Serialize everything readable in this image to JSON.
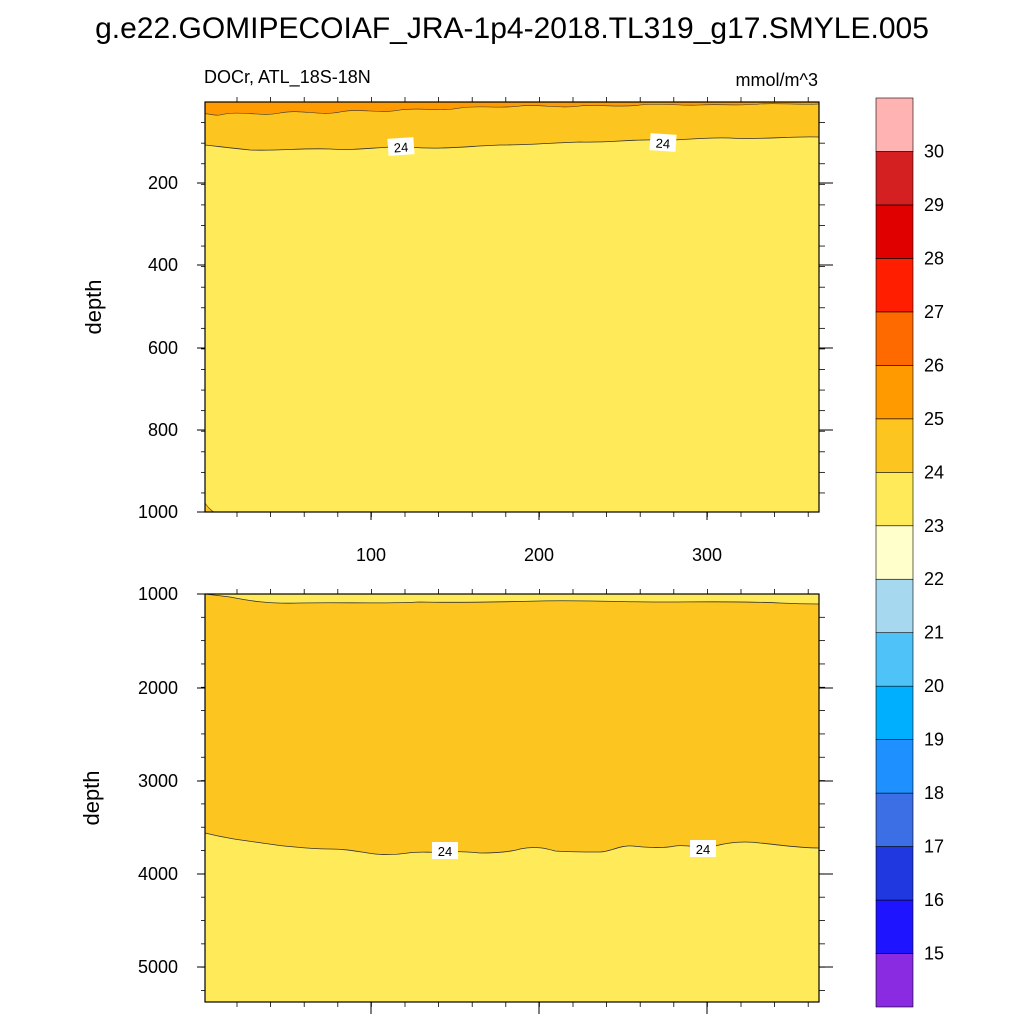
{
  "title": "g.e22.GOMIPECOIAF_JRA-1p4-2018.TL319_g17.SMYLE.005",
  "left_subtitle": "DOCr, ATL_18S-18N",
  "right_subtitle": "mmol/m^3",
  "colorbar": {
    "levels": [
      "15",
      "16",
      "17",
      "18",
      "19",
      "20",
      "21",
      "22",
      "23",
      "24",
      "25",
      "26",
      "27",
      "28",
      "29",
      "30"
    ],
    "colors": [
      "#8a2be2",
      "#1e14ff",
      "#2038e0",
      "#3c6ee6",
      "#1e90ff",
      "#00b0ff",
      "#4fc3f7",
      "#a6d8f0",
      "#ffffcc",
      "#ffeb5a",
      "#fdc520",
      "#ff9a00",
      "#ff6a00",
      "#ff1e00",
      "#e00000",
      "#d42020",
      "#ffb3b3"
    ]
  },
  "chart_data": [
    {
      "type": "contour",
      "panel": "upper",
      "ylabel": "depth",
      "x_ticks": [
        "100",
        "200",
        "300"
      ],
      "y_ticks": [
        "200",
        "400",
        "600",
        "800",
        "1000"
      ],
      "xlim": [
        1,
        366
      ],
      "ylim": [
        0,
        1000
      ],
      "y_reversed": true,
      "contour_labels": [
        {
          "text": "24",
          "x": 117,
          "depth": 107
        },
        {
          "text": "24",
          "x": 273,
          "depth": 92
        }
      ],
      "bands": [
        {
          "range": "25-26",
          "color": "#ff9a00",
          "depth_top": 0,
          "depth_bottom": 35
        },
        {
          "range": "24-25",
          "color": "#fdc520",
          "depth_top": 35,
          "depth_bottom": 105
        },
        {
          "range": "23-24",
          "color": "#ffeb5a",
          "depth_top": 105,
          "depth_bottom": 1000
        }
      ]
    },
    {
      "type": "contour",
      "panel": "lower",
      "ylabel": "depth",
      "x_ticks": [
        "100",
        "200",
        "300"
      ],
      "y_ticks": [
        "1000",
        "2000",
        "3000",
        "4000",
        "5000"
      ],
      "xlim": [
        1,
        366
      ],
      "ylim": [
        1000,
        5375
      ],
      "y_reversed": true,
      "contour_labels": [
        {
          "text": "24",
          "x": 143,
          "depth": 3770
        },
        {
          "text": "24",
          "x": 296,
          "depth": 3750
        }
      ],
      "bands": [
        {
          "range": "23-24",
          "color": "#ffeb5a",
          "depth_top": 1000,
          "depth_bottom": 1090
        },
        {
          "range": "24-25",
          "color": "#fdc520",
          "depth_top": 1090,
          "depth_bottom": 3750
        },
        {
          "range": "23-24",
          "color": "#ffeb5a",
          "depth_top": 3750,
          "depth_bottom": 5375
        }
      ]
    }
  ]
}
